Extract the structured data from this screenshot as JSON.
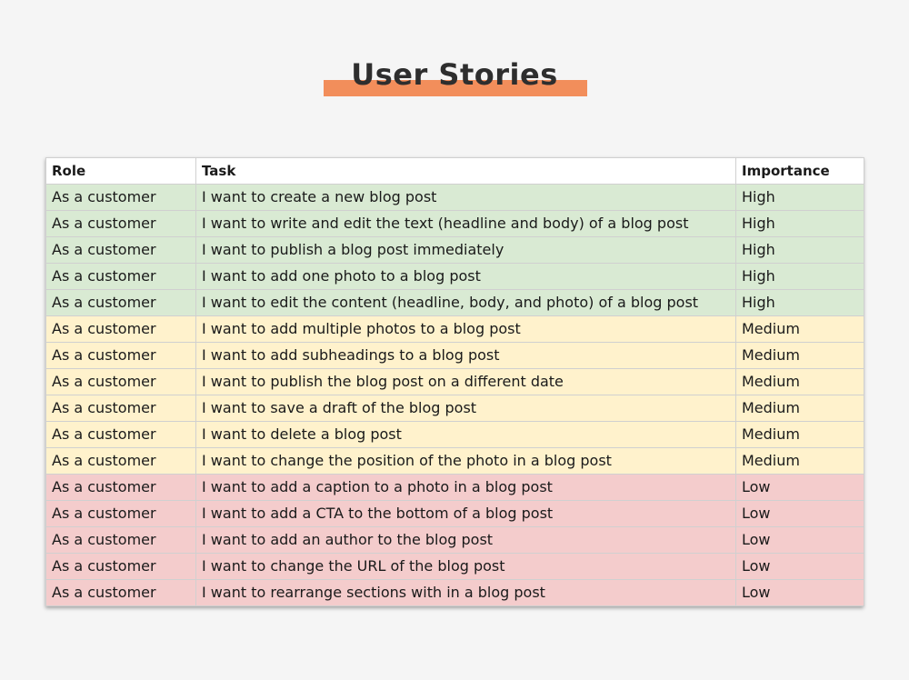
{
  "title": "User Stories",
  "colors": {
    "title_underline": "#f28e5b",
    "high": "#d9ead3",
    "medium": "#fff2cc",
    "low": "#f4cccc"
  },
  "table": {
    "headers": [
      "Role",
      "Task",
      "Importance"
    ],
    "rows": [
      {
        "role": "As a customer",
        "task": "I want to create a new blog post",
        "importance": "High"
      },
      {
        "role": "As a customer",
        "task": "I want to write and edit the text (headline and body) of a blog post",
        "importance": "High"
      },
      {
        "role": "As a customer",
        "task": "I want to publish a blog post immediately",
        "importance": "High"
      },
      {
        "role": "As a customer",
        "task": "I want to add one photo to a blog post",
        "importance": "High"
      },
      {
        "role": "As a customer",
        "task": "I want to edit the content (headline, body, and photo) of a blog post",
        "importance": "High"
      },
      {
        "role": "As a customer",
        "task": "I want to add multiple photos to a blog post",
        "importance": "Medium"
      },
      {
        "role": "As a customer",
        "task": "I want to add subheadings to a blog post",
        "importance": "Medium"
      },
      {
        "role": "As a customer",
        "task": "I want to publish the blog post on a different date",
        "importance": "Medium"
      },
      {
        "role": "As a customer",
        "task": "I want to save a draft of the blog post",
        "importance": "Medium"
      },
      {
        "role": "As a customer",
        "task": "I want to delete a blog post",
        "importance": "Medium"
      },
      {
        "role": "As a customer",
        "task": "I want to change the position of the photo in a blog post",
        "importance": "Medium"
      },
      {
        "role": "As a customer",
        "task": "I want to add a caption to a photo in a blog post",
        "importance": "Low"
      },
      {
        "role": "As a customer",
        "task": "I want to add a CTA to the bottom of a blog post",
        "importance": "Low"
      },
      {
        "role": "As a customer",
        "task": "I want to add an author to the blog post",
        "importance": "Low"
      },
      {
        "role": "As a customer",
        "task": "I want to change the URL of the blog post",
        "importance": "Low"
      },
      {
        "role": "As a customer",
        "task": "I want to rearrange sections with in a blog post",
        "importance": "Low"
      }
    ]
  }
}
